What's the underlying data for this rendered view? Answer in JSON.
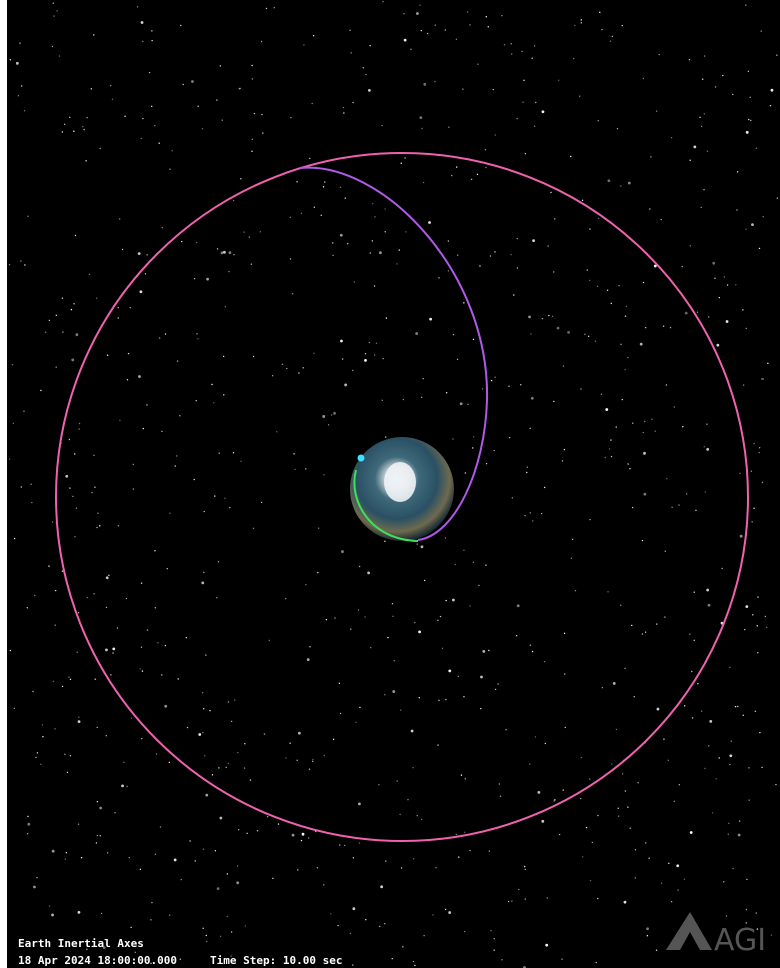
{
  "overlay": {
    "axes_label": "Earth Inertial Axes",
    "datetime": "18 Apr 2024 18:00:00.000",
    "time_step": "Time Step: 10.00 sec"
  },
  "logo": "AGI"
}
